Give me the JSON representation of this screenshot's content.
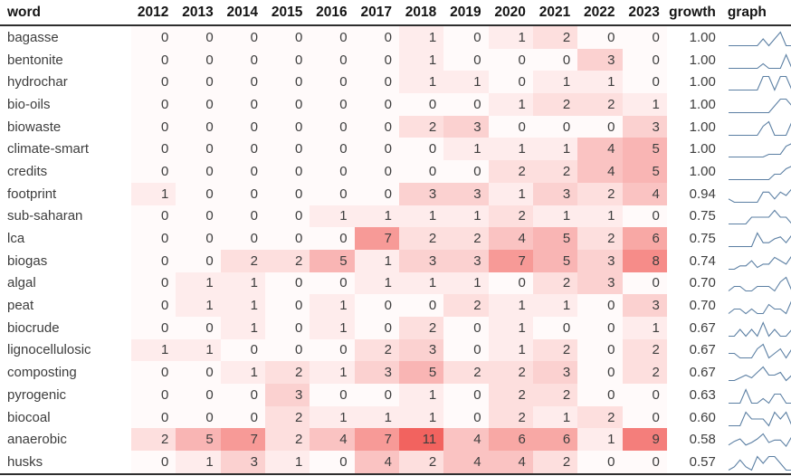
{
  "chart_data": {
    "type": "heatmap",
    "title": "",
    "columns": [
      "word",
      "2012",
      "2013",
      "2014",
      "2015",
      "2016",
      "2017",
      "2018",
      "2019",
      "2020",
      "2021",
      "2022",
      "2023",
      "growth",
      "graph"
    ],
    "x": [
      "2012",
      "2013",
      "2014",
      "2015",
      "2016",
      "2017",
      "2018",
      "2019",
      "2020",
      "2021",
      "2022",
      "2023"
    ],
    "rows": [
      {
        "word": "bagasse",
        "values": [
          0,
          0,
          0,
          0,
          0,
          0,
          1,
          0,
          1,
          2,
          0,
          0
        ],
        "growth": "1.00"
      },
      {
        "word": "bentonite",
        "values": [
          0,
          0,
          0,
          0,
          0,
          0,
          1,
          0,
          0,
          0,
          3,
          0
        ],
        "growth": "1.00"
      },
      {
        "word": "hydrochar",
        "values": [
          0,
          0,
          0,
          0,
          0,
          0,
          1,
          1,
          0,
          1,
          1,
          0
        ],
        "growth": "1.00"
      },
      {
        "word": "bio-oils",
        "values": [
          0,
          0,
          0,
          0,
          0,
          0,
          0,
          0,
          1,
          2,
          2,
          1
        ],
        "growth": "1.00"
      },
      {
        "word": "biowaste",
        "values": [
          0,
          0,
          0,
          0,
          0,
          0,
          2,
          3,
          0,
          0,
          0,
          3
        ],
        "growth": "1.00"
      },
      {
        "word": "climate-smart",
        "values": [
          0,
          0,
          0,
          0,
          0,
          0,
          0,
          1,
          1,
          1,
          4,
          5
        ],
        "growth": "1.00"
      },
      {
        "word": "credits",
        "values": [
          0,
          0,
          0,
          0,
          0,
          0,
          0,
          0,
          2,
          2,
          4,
          5
        ],
        "growth": "1.00"
      },
      {
        "word": "footprint",
        "values": [
          1,
          0,
          0,
          0,
          0,
          0,
          3,
          3,
          1,
          3,
          2,
          4
        ],
        "growth": "0.94"
      },
      {
        "word": "sub-saharan",
        "values": [
          0,
          0,
          0,
          0,
          1,
          1,
          1,
          1,
          2,
          1,
          1,
          0
        ],
        "growth": "0.75"
      },
      {
        "word": "lca",
        "values": [
          0,
          0,
          0,
          0,
          0,
          7,
          2,
          2,
          4,
          5,
          2,
          6
        ],
        "growth": "0.75"
      },
      {
        "word": "biogas",
        "values": [
          0,
          0,
          2,
          2,
          5,
          1,
          3,
          3,
          7,
          5,
          3,
          8
        ],
        "growth": "0.74"
      },
      {
        "word": "algal",
        "values": [
          0,
          1,
          1,
          0,
          0,
          1,
          1,
          1,
          0,
          2,
          3,
          0
        ],
        "growth": "0.70"
      },
      {
        "word": "peat",
        "values": [
          0,
          1,
          1,
          0,
          1,
          0,
          0,
          2,
          1,
          1,
          0,
          3
        ],
        "growth": "0.70"
      },
      {
        "word": "biocrude",
        "values": [
          0,
          0,
          1,
          0,
          1,
          0,
          2,
          0,
          1,
          0,
          0,
          1
        ],
        "growth": "0.67"
      },
      {
        "word": "lignocellulosic",
        "values": [
          1,
          1,
          0,
          0,
          0,
          2,
          3,
          0,
          1,
          2,
          0,
          2
        ],
        "growth": "0.67"
      },
      {
        "word": "composting",
        "values": [
          0,
          0,
          1,
          2,
          1,
          3,
          5,
          2,
          2,
          3,
          0,
          2
        ],
        "growth": "0.67"
      },
      {
        "word": "pyrogenic",
        "values": [
          0,
          0,
          0,
          3,
          0,
          0,
          1,
          0,
          2,
          2,
          0,
          0
        ],
        "growth": "0.63"
      },
      {
        "word": "biocoal",
        "values": [
          0,
          0,
          0,
          2,
          1,
          1,
          1,
          0,
          2,
          1,
          2,
          0
        ],
        "growth": "0.60"
      },
      {
        "word": "anaerobic",
        "values": [
          2,
          5,
          7,
          2,
          4,
          7,
          11,
          4,
          6,
          6,
          1,
          9
        ],
        "growth": "0.58"
      },
      {
        "word": "husks",
        "values": [
          0,
          1,
          3,
          1,
          0,
          4,
          2,
          4,
          4,
          2,
          0,
          0
        ],
        "growth": "0.57"
      }
    ],
    "heat_range": [
      0,
      11
    ],
    "colors": {
      "heat_low": "#fffafa",
      "heat_high": "#f2635f",
      "sparkline": "#5b7fa3",
      "border": "#2e2e2e"
    },
    "layout": {
      "grid": false,
      "legend": "none",
      "sparkline_scale": "per-row-max"
    }
  }
}
